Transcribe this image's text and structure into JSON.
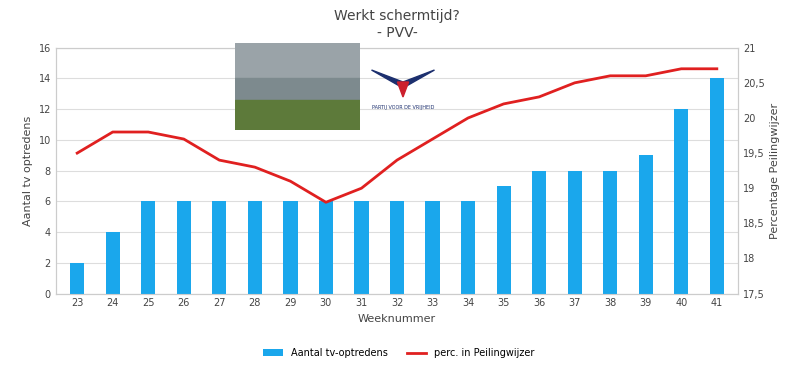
{
  "chart_data": {
    "type": "bar",
    "title": "Werkt schermtijd?\n- PVV-",
    "logo_text": "PARTIJ VOOR DE VRIJHEID",
    "x_label": "Weeknummer",
    "y_label": "Aantal tv optredens",
    "y2_label": "Percentage Peilingwijzer",
    "categories": [
      "23",
      "24",
      "25",
      "26",
      "27",
      "28",
      "29",
      "30",
      "31",
      "32",
      "33",
      "34",
      "35",
      "36",
      "37",
      "38",
      "39",
      "40",
      "41"
    ],
    "series": [
      {
        "name": "Aantal tv-optredens",
        "type": "bar",
        "color": "#1aa7ec",
        "values": [
          2,
          4,
          6,
          6,
          6,
          6,
          6,
          6,
          6,
          6,
          6,
          6,
          7,
          8,
          8,
          8,
          9,
          12,
          14
        ]
      },
      {
        "name": "perc. in Peilingwijzer",
        "type": "line",
        "color": "#e02020",
        "axis": "y2",
        "values": [
          19.5,
          19.8,
          19.8,
          19.7,
          19.4,
          19.3,
          19.1,
          18.8,
          19.0,
          19.4,
          19.7,
          20.0,
          20.2,
          20.3,
          20.5,
          20.6,
          20.6,
          20.7,
          20.7
        ]
      }
    ],
    "ylim": [
      0,
      16
    ],
    "yticks": [
      0,
      2,
      4,
      6,
      8,
      10,
      12,
      14,
      16
    ],
    "y2lim": [
      17.5,
      21
    ],
    "y2ticks": [
      {
        "value": 17.5,
        "label": "17,5"
      },
      18,
      {
        "value": 18.5,
        "label": "18,5"
      },
      19,
      {
        "value": 19.5,
        "label": "19,5"
      },
      20,
      {
        "value": 20.5,
        "label": "20,5"
      },
      21
    ],
    "grid": true,
    "legend": "lower center"
  }
}
